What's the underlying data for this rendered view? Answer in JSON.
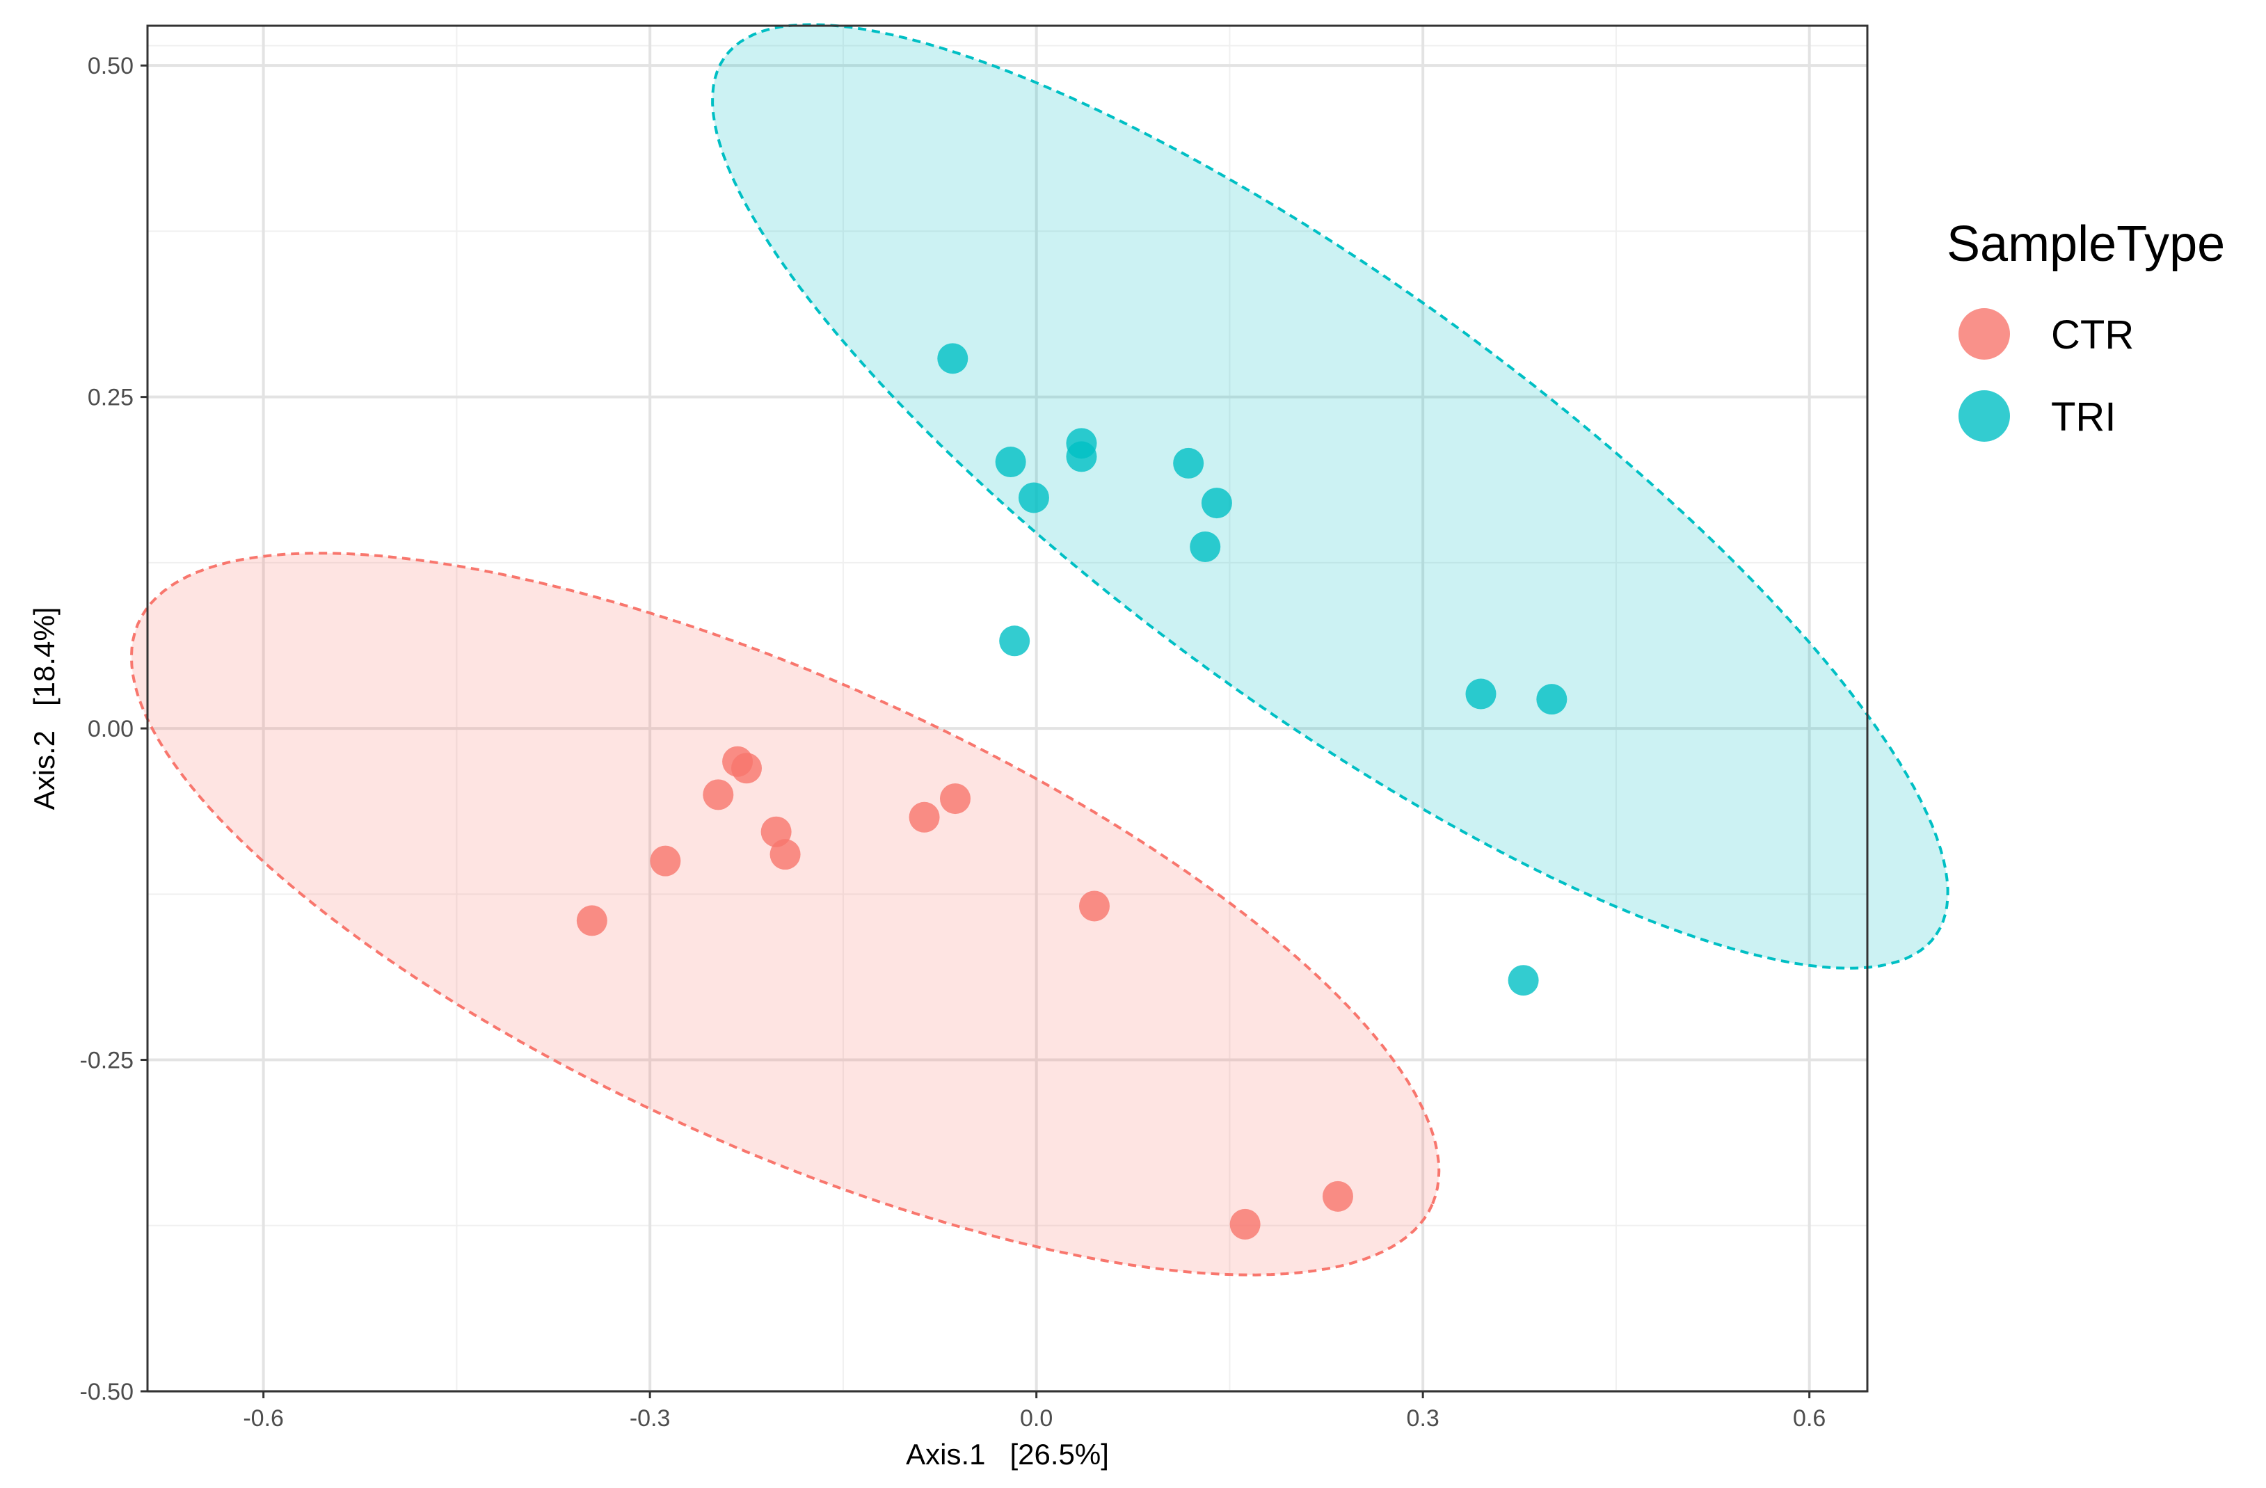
{
  "chart_data": {
    "type": "scatter",
    "title": "",
    "xlabel": "Axis.1   [26.5%]",
    "ylabel": "Axis.2   [18.4%]",
    "xlim": [
      -0.69,
      0.645
    ],
    "ylim": [
      -0.5,
      0.53
    ],
    "x_ticks": [
      -0.6,
      -0.3,
      0.0,
      0.3,
      0.6
    ],
    "x_tick_labels": [
      "-0.6",
      "-0.3",
      "0.0",
      "0.3",
      "0.6"
    ],
    "y_ticks": [
      -0.5,
      -0.25,
      0.0,
      0.25,
      0.5
    ],
    "y_tick_labels": [
      "-0.50",
      "-0.25",
      "0.00",
      "0.25",
      "0.50"
    ],
    "grid": true,
    "legend": {
      "title": "SampleType",
      "position": "right",
      "entries": [
        "CTR",
        "TRI"
      ]
    },
    "series": [
      {
        "name": "CTR",
        "color": "#F8766D",
        "points": [
          {
            "x": -0.345,
            "y": -0.145
          },
          {
            "x": -0.288,
            "y": -0.1
          },
          {
            "x": -0.247,
            "y": -0.05
          },
          {
            "x": -0.232,
            "y": -0.025
          },
          {
            "x": -0.225,
            "y": -0.03
          },
          {
            "x": -0.202,
            "y": -0.078
          },
          {
            "x": -0.195,
            "y": -0.095
          },
          {
            "x": -0.087,
            "y": -0.067
          },
          {
            "x": -0.063,
            "y": -0.053
          },
          {
            "x": 0.045,
            "y": -0.134
          },
          {
            "x": 0.162,
            "y": -0.374
          },
          {
            "x": 0.234,
            "y": -0.353
          }
        ],
        "ellipse": {
          "center": [
            -0.195,
            -0.14
          ],
          "semi_major": 0.548,
          "semi_minor": 0.177,
          "rotation_deg": -23.5
        }
      },
      {
        "name": "TRI",
        "color": "#00BFC4",
        "points": [
          {
            "x": -0.065,
            "y": 0.279
          },
          {
            "x": -0.02,
            "y": 0.201
          },
          {
            "x": -0.002,
            "y": 0.174
          },
          {
            "x": 0.035,
            "y": 0.215
          },
          {
            "x": 0.035,
            "y": 0.205
          },
          {
            "x": 0.118,
            "y": 0.2
          },
          {
            "x": 0.14,
            "y": 0.17
          },
          {
            "x": 0.131,
            "y": 0.137
          },
          {
            "x": -0.017,
            "y": 0.066
          },
          {
            "x": 0.345,
            "y": 0.026
          },
          {
            "x": 0.4,
            "y": 0.022
          },
          {
            "x": 0.378,
            "y": -0.19
          }
        ],
        "ellipse": {
          "center": [
            0.228,
            0.175
          ],
          "semi_major": 0.575,
          "semi_minor": 0.161,
          "rotation_deg": -35.1
        }
      }
    ]
  }
}
